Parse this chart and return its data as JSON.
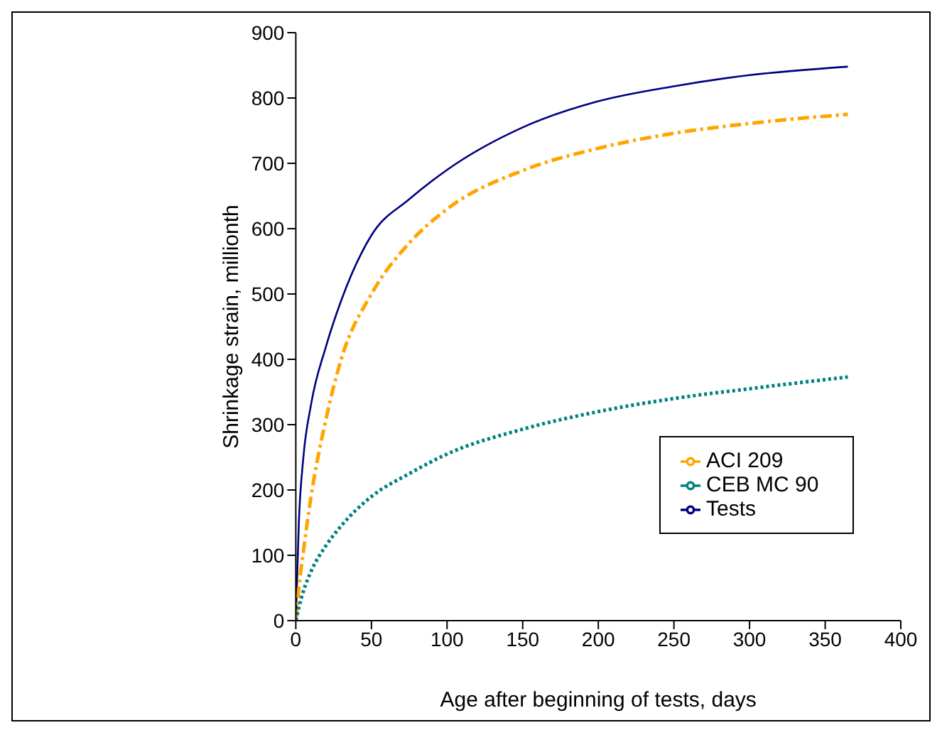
{
  "chart_data": {
    "type": "line",
    "xlabel": "Age after beginning of tests, days",
    "ylabel": "Shrinkage strain, millionth",
    "x": [
      0,
      2,
      5,
      10,
      20,
      30,
      50,
      75,
      100,
      150,
      200,
      250,
      300,
      365
    ],
    "series": [
      {
        "name": "Tests",
        "color": "#000080",
        "line_style": "solid",
        "values": [
          0,
          150,
          250,
          330,
          420,
          490,
          590,
          645,
          690,
          755,
          795,
          818,
          835,
          848
        ]
      },
      {
        "name": "ACI 209",
        "color": "#ffa500",
        "line_style": "dashed",
        "values": [
          0,
          50,
          106,
          189,
          309,
          400,
          500,
          578,
          630,
          689,
          723,
          746,
          761,
          775
        ]
      },
      {
        "name": "CEB MC 90",
        "color": "#008080",
        "line_style": "dotted",
        "values": [
          0,
          20,
          45,
          75,
          115,
          145,
          190,
          225,
          255,
          293,
          320,
          340,
          355,
          373
        ]
      }
    ],
    "xlim": [
      0,
      400
    ],
    "xticks": [
      0,
      50,
      100,
      150,
      200,
      250,
      300,
      350,
      400
    ],
    "ylim": [
      0,
      900
    ],
    "yticks": [
      0,
      100,
      200,
      300,
      400,
      500,
      600,
      700,
      800,
      900
    ],
    "grid": false,
    "legend": "bottom right",
    "marker": "none"
  }
}
